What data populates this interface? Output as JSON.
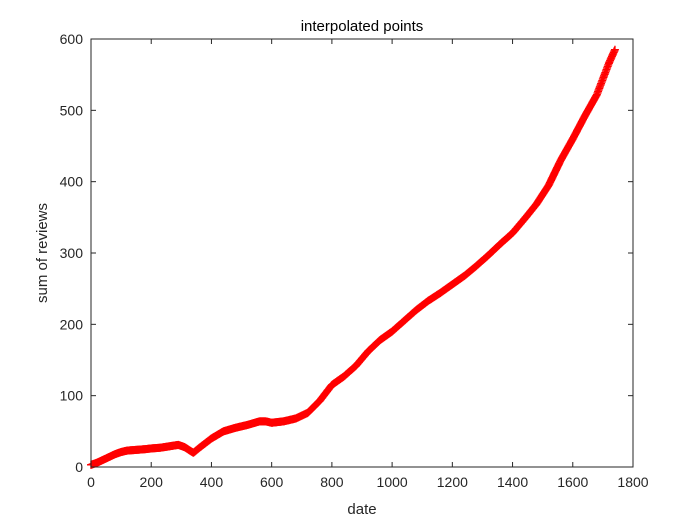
{
  "chart_data": {
    "type": "scatter",
    "title": "interpolated points",
    "xlabel": "date",
    "ylabel": "sum of reviews",
    "xlim": [
      0,
      1800
    ],
    "ylim": [
      0,
      600
    ],
    "xticks": [
      0,
      200,
      400,
      600,
      800,
      1000,
      1200,
      1400,
      1600,
      1800
    ],
    "yticks": [
      0,
      100,
      200,
      300,
      400,
      500,
      600
    ],
    "xtick_labels": [
      "0",
      "200",
      "400",
      "600",
      "800",
      "1000",
      "1200",
      "1400",
      "1600",
      "1800"
    ],
    "ytick_labels": [
      "0",
      "100",
      "200",
      "300",
      "400",
      "500",
      "600"
    ],
    "grid": false,
    "legend": "none",
    "marker": "+",
    "marker_color": "#ff0000",
    "series": [
      {
        "x": [
          0,
          20,
          40,
          60,
          80,
          100,
          120,
          150,
          180,
          200,
          230,
          260,
          290,
          310,
          340,
          360,
          400,
          440,
          480,
          520,
          560,
          580,
          600,
          640,
          680,
          720,
          760,
          800,
          840,
          880,
          920,
          960,
          1000,
          1040,
          1080,
          1120,
          1160,
          1200,
          1240,
          1280,
          1320,
          1360,
          1400,
          1440,
          1480,
          1520,
          1560,
          1600,
          1640,
          1680,
          1720,
          1740
        ],
        "y": [
          3,
          6,
          10,
          14,
          18,
          21,
          23,
          24,
          25,
          26,
          27,
          29,
          31,
          28,
          20,
          27,
          40,
          50,
          55,
          59,
          64,
          64,
          62,
          64,
          68,
          76,
          93,
          115,
          127,
          142,
          162,
          178,
          190,
          205,
          220,
          233,
          244,
          256,
          268,
          282,
          297,
          313,
          328,
          348,
          369,
          395,
          430,
          460,
          492,
          522,
          566,
          585
        ]
      }
    ]
  }
}
